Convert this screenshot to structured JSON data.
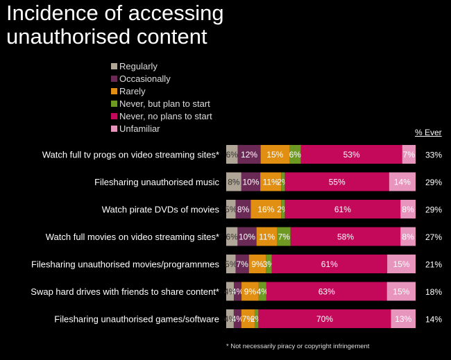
{
  "title": [
    "Incidence of accessing",
    "unauthorised content"
  ],
  "footnote": "* Not necessarily piracy or copyright infringement",
  "chart_data": {
    "type": "bar",
    "orientation": "horizontal-stacked",
    "ever_header": "% Ever",
    "legend": [
      {
        "name": "Regularly",
        "color": "#b0a697"
      },
      {
        "name": "Occasionally",
        "color": "#6b2a55"
      },
      {
        "name": "Rarely",
        "color": "#e08f12"
      },
      {
        "name": "Never, but plan to start",
        "color": "#6e9a23"
      },
      {
        "name": "Never, no plans to start",
        "color": "#c4085a"
      },
      {
        "name": "Unfamiliar",
        "color": "#e895bd"
      }
    ],
    "categories": [
      "Watch full tv progs on video streaming sites*",
      "Filesharing unauthorised music",
      "Watch pirate DVDs of movies",
      "Watch full movies on video streaming sites*",
      "Filesharing unauthorised movies/programnmes",
      "Swap hard drives with friends to share content*",
      "Filesharing unauthorised games/software"
    ],
    "series": [
      {
        "name": "Regularly",
        "values": [
          6,
          8,
          5,
          6,
          5,
          4,
          4
        ]
      },
      {
        "name": "Occasionally",
        "values": [
          12,
          10,
          8,
          10,
          7,
          4,
          4
        ]
      },
      {
        "name": "Rarely",
        "values": [
          15,
          11,
          16,
          11,
          9,
          9,
          7
        ]
      },
      {
        "name": "Never, but plan to start",
        "values": [
          6,
          2,
          2,
          7,
          3,
          4,
          2
        ]
      },
      {
        "name": "Never, no plans to start",
        "values": [
          53,
          55,
          61,
          58,
          61,
          63,
          70
        ]
      },
      {
        "name": "Unfamiliar",
        "values": [
          7,
          14,
          8,
          8,
          15,
          15,
          13
        ]
      }
    ],
    "ever": [
      "33%",
      "29%",
      "29%",
      "27%",
      "21%",
      "18%",
      "14%"
    ]
  }
}
